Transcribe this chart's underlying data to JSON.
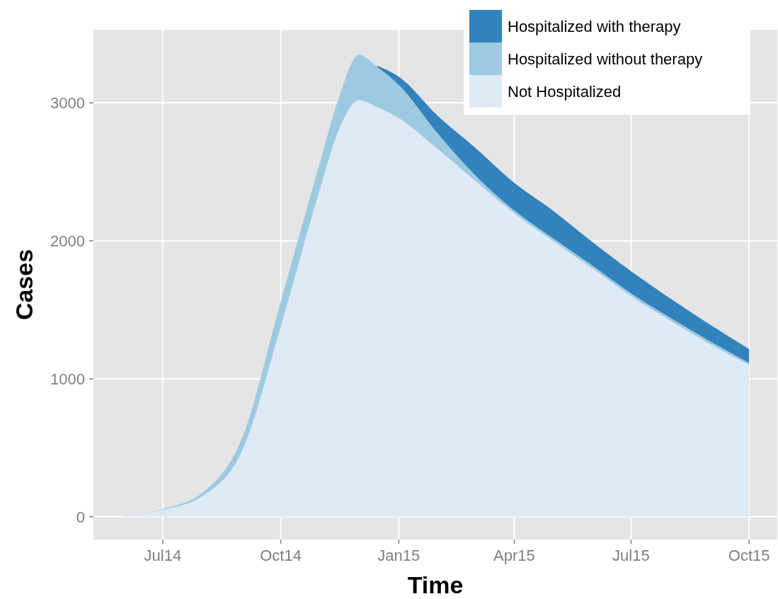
{
  "chart_data": {
    "type": "area",
    "stacked": true,
    "xlabel": "Time",
    "ylabel": "Cases",
    "x": [
      "2014-05-29",
      "2014-06-15",
      "2014-07-01",
      "2014-08-01",
      "2014-09-01",
      "2014-10-01",
      "2014-11-01",
      "2014-11-15",
      "2014-12-01",
      "2014-12-15",
      "2015-01-01",
      "2015-02-01",
      "2015-03-01",
      "2015-04-01",
      "2015-05-01",
      "2015-06-01",
      "2015-07-01",
      "2015-08-01",
      "2015-09-01",
      "2015-10-01"
    ],
    "series": [
      {
        "name": "Not Hospitalized",
        "color": "#deebf7",
        "values": [
          0,
          18,
          50,
          150,
          480,
          1380,
          2390,
          2800,
          3020,
          2970,
          2890,
          2660,
          2440,
          2200,
          2000,
          1800,
          1600,
          1420,
          1250,
          1100
        ]
      },
      {
        "name": "Hospitalized without therapy",
        "color": "#9ecae1",
        "values": [
          0,
          2,
          6,
          24,
          94,
          180,
          195,
          230,
          330,
          290,
          240,
          110,
          40,
          20,
          20,
          20,
          20,
          20,
          20,
          15
        ]
      },
      {
        "name": "Hospitalized with therapy",
        "color": "#3182bd",
        "values": [
          null,
          null,
          null,
          null,
          null,
          null,
          null,
          null,
          null,
          10,
          60,
          130,
          200,
          200,
          200,
          170,
          160,
          140,
          120,
          100
        ]
      }
    ],
    "xlim": [
      "2014-05-08",
      "2015-10-23"
    ],
    "ylim": [
      -165,
      3530
    ],
    "xticks": [
      {
        "value": "2014-07-01",
        "label": "Jul14"
      },
      {
        "value": "2014-10-01",
        "label": "Oct14"
      },
      {
        "value": "2015-01-01",
        "label": "Jan15"
      },
      {
        "value": "2015-04-01",
        "label": "Apr15"
      },
      {
        "value": "2015-07-01",
        "label": "Jul15"
      },
      {
        "value": "2015-10-01",
        "label": "Oct15"
      }
    ],
    "yticks": [
      0,
      1000,
      2000,
      3000
    ],
    "grid": true,
    "legend": "top right"
  }
}
